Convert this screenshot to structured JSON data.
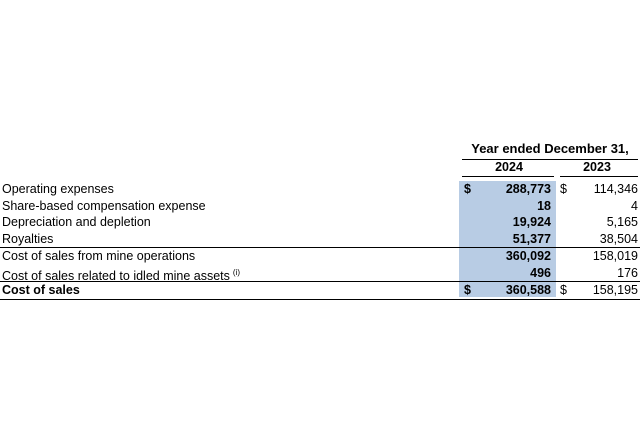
{
  "header": {
    "period": "Year ended December 31,",
    "year_current": "2024",
    "year_prior": "2023"
  },
  "rows": [
    {
      "label": "Operating expenses",
      "currency_current": "$",
      "current": "288,773",
      "currency_prior": "$",
      "prior": "114,346"
    },
    {
      "label": "Share-based compensation expense",
      "current": "18",
      "prior": "4"
    },
    {
      "label": "Depreciation and depletion",
      "current": "19,924",
      "prior": "5,165"
    },
    {
      "label": "Royalties",
      "current": "51,377",
      "prior": "38,504"
    },
    {
      "label": "Cost of sales from mine operations",
      "current": "360,092",
      "prior": "158,019"
    },
    {
      "label": "Cost of sales related to idled mine assets",
      "footnote": "(i)",
      "current": "496",
      "prior": "176"
    },
    {
      "label": "Cost of sales",
      "currency_current": "$",
      "current": "360,588",
      "currency_prior": "$",
      "prior": "158,195"
    }
  ],
  "colors": {
    "highlight": "#b8cce4"
  }
}
